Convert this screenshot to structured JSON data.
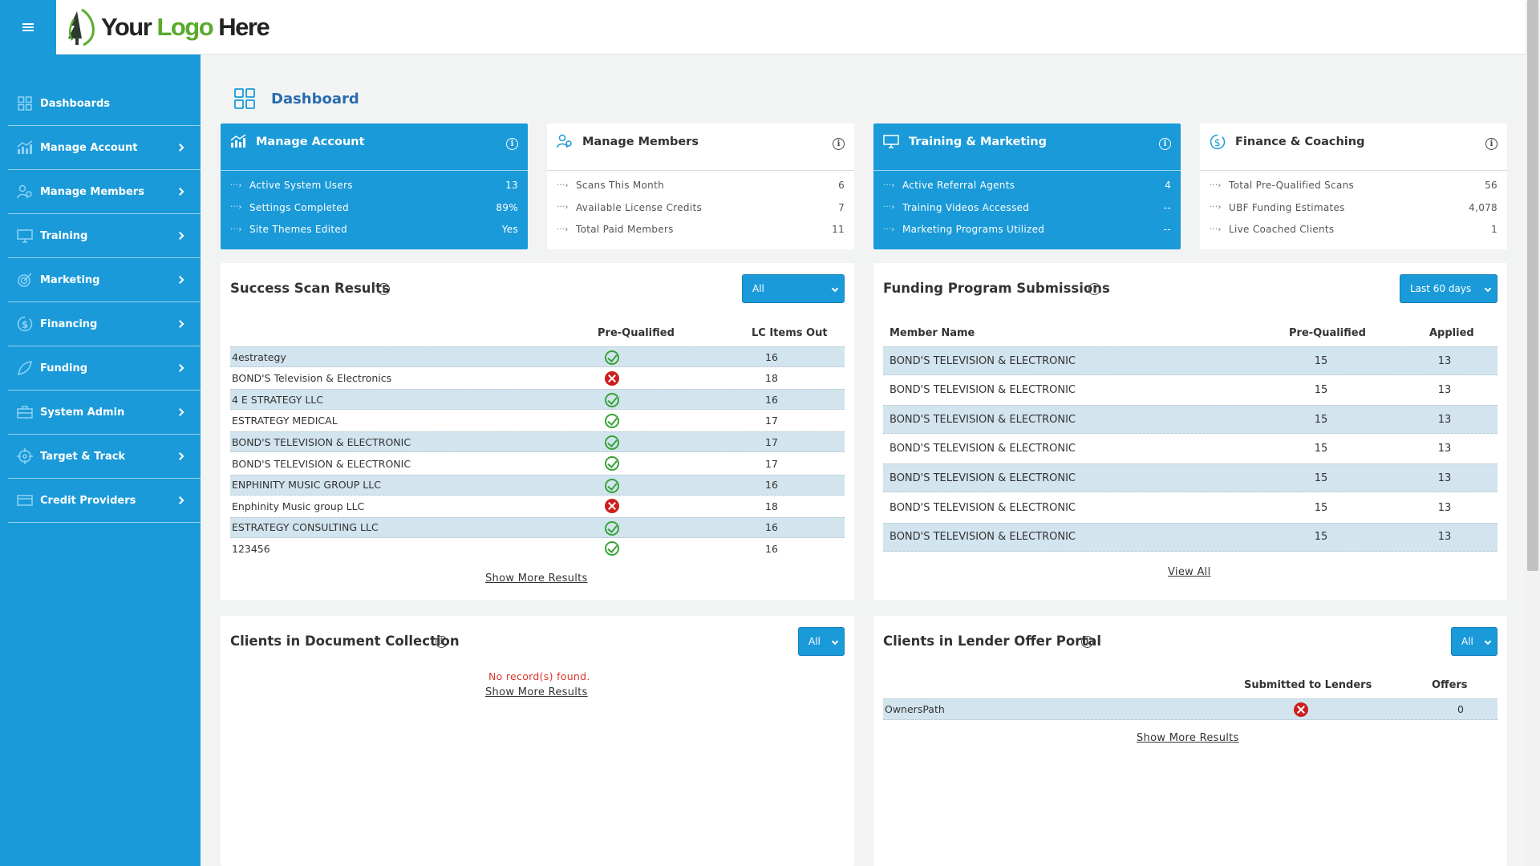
{
  "logo": {
    "part1": "Your ",
    "part2": "Logo ",
    "part3": "Here"
  },
  "sidebar": {
    "items": [
      {
        "label": "Dashboards",
        "icon": "grid-icon"
      },
      {
        "label": "Manage Account",
        "icon": "chart-icon"
      },
      {
        "label": "Manage Members",
        "icon": "users-icon"
      },
      {
        "label": "Training",
        "icon": "monitor-icon"
      },
      {
        "label": "Marketing",
        "icon": "target-icon"
      },
      {
        "label": "Financing",
        "icon": "dollar-icon"
      },
      {
        "label": "Funding",
        "icon": "leaf-icon"
      },
      {
        "label": "System Admin",
        "icon": "briefcase-icon"
      },
      {
        "label": "Target & Track",
        "icon": "crosshair-icon"
      },
      {
        "label": "Credit Providers",
        "icon": "card-icon"
      }
    ]
  },
  "page": {
    "title": "Dashboard"
  },
  "stats": [
    {
      "title": "Manage Account",
      "rows": [
        {
          "label": "Active System Users",
          "value": "13"
        },
        {
          "label": "Settings Completed",
          "value": "89%"
        },
        {
          "label": "Site Themes Edited",
          "value": "Yes"
        }
      ]
    },
    {
      "title": "Manage Members",
      "rows": [
        {
          "label": "Scans This Month",
          "value": "6"
        },
        {
          "label": "Available License Credits",
          "value": "7"
        },
        {
          "label": "Total Paid Members",
          "value": "11"
        }
      ]
    },
    {
      "title": "Training & Marketing",
      "rows": [
        {
          "label": "Active Referral Agents",
          "value": "4"
        },
        {
          "label": "Training Videos Accessed",
          "value": "--"
        },
        {
          "label": "Marketing Programs Utilized",
          "value": "--"
        }
      ]
    },
    {
      "title": "Finance & Coaching",
      "rows": [
        {
          "label": "Total Pre-Qualified Scans",
          "value": "56"
        },
        {
          "label": "UBF Funding Estimates",
          "value": "4,078"
        },
        {
          "label": "Live Coached Clients",
          "value": "1"
        }
      ]
    }
  ],
  "scan": {
    "title": "Success Scan Results",
    "filter": "All",
    "headers": {
      "prequalified": "Pre-Qualified",
      "lc": "LC Items Out"
    },
    "rows": [
      {
        "name": "4estrategy",
        "ok": true,
        "lc": "16"
      },
      {
        "name": "BOND'S Television & Electronics",
        "ok": false,
        "lc": "18"
      },
      {
        "name": "4 E STRATEGY LLC",
        "ok": true,
        "lc": "16"
      },
      {
        "name": "ESTRATEGY MEDICAL",
        "ok": true,
        "lc": "17"
      },
      {
        "name": "BOND'S TELEVISION & ELECTRONIC",
        "ok": true,
        "lc": "17"
      },
      {
        "name": "BOND'S TELEVISION & ELECTRONIC",
        "ok": true,
        "lc": "17"
      },
      {
        "name": "ENPHINITY MUSIC GROUP LLC",
        "ok": true,
        "lc": "16"
      },
      {
        "name": "Enphinity Music group LLC",
        "ok": false,
        "lc": "18"
      },
      {
        "name": "ESTRATEGY CONSULTING LLC",
        "ok": true,
        "lc": "16"
      },
      {
        "name": "123456",
        "ok": true,
        "lc": "16"
      }
    ],
    "more": "Show More Results"
  },
  "funding": {
    "title": "Funding Program Submissions",
    "filter": "Last 60 days",
    "headers": {
      "member": "Member Name",
      "prequalified": "Pre-Qualified",
      "applied": "Applied"
    },
    "rows": [
      {
        "name": "BOND'S TELEVISION & ELECTRONIC",
        "pq": "15",
        "applied": "13"
      },
      {
        "name": "BOND'S TELEVISION & ELECTRONIC",
        "pq": "15",
        "applied": "13"
      },
      {
        "name": "BOND'S TELEVISION & ELECTRONIC",
        "pq": "15",
        "applied": "13"
      },
      {
        "name": "BOND'S TELEVISION & ELECTRONIC",
        "pq": "15",
        "applied": "13"
      },
      {
        "name": "BOND'S TELEVISION & ELECTRONIC",
        "pq": "15",
        "applied": "13"
      },
      {
        "name": "BOND'S TELEVISION & ELECTRONIC",
        "pq": "15",
        "applied": "13"
      },
      {
        "name": "BOND'S TELEVISION & ELECTRONIC",
        "pq": "15",
        "applied": "13"
      }
    ],
    "more": "View All"
  },
  "docs": {
    "title": "Clients in Document Collection",
    "filter": "All",
    "empty": "No record(s) found.",
    "more": "Show More Results"
  },
  "lender": {
    "title": "Clients in Lender Offer Portal",
    "filter": "All",
    "headers": {
      "submitted": "Submitted to Lenders",
      "offers": "Offers"
    },
    "rows": [
      {
        "name": "OwnersPath",
        "ok": false,
        "offers": "0"
      }
    ],
    "more": "Show More Results"
  },
  "colors": {
    "accent": "#1a9ad9",
    "row_alt": "#d2e4ee",
    "title": "#2a6cb0",
    "error": "#d9372b"
  }
}
